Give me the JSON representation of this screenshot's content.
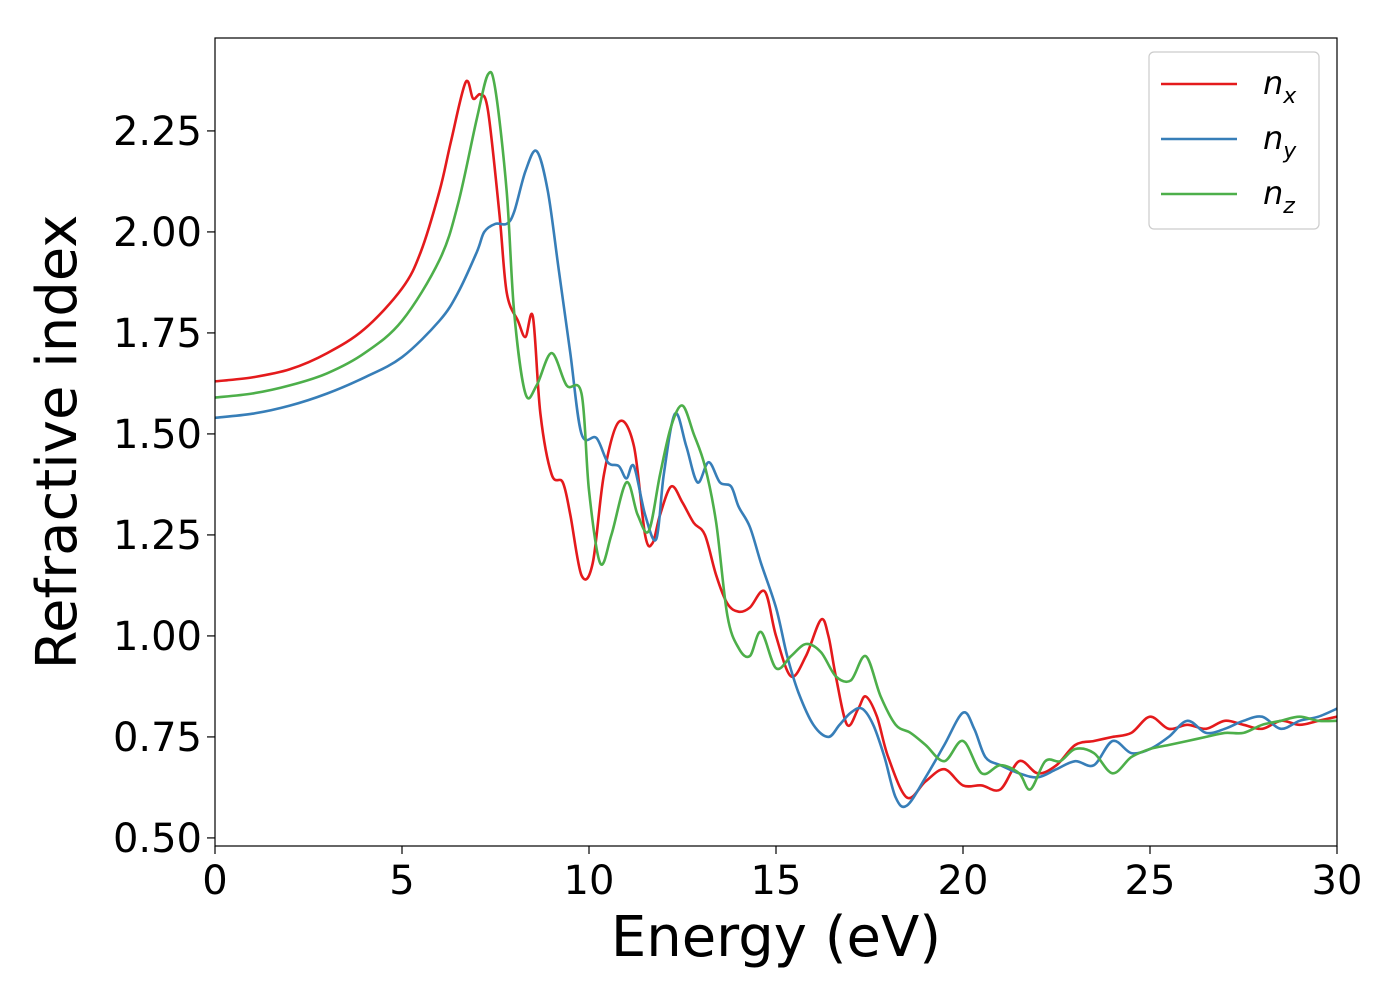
{
  "chart_data": {
    "type": "line",
    "title": "",
    "xlabel": "Energy (eV)",
    "ylabel": "Refractive index",
    "xlim": [
      0,
      30
    ],
    "ylim": [
      0.48,
      2.48
    ],
    "xticks": [
      0,
      5,
      10,
      15,
      20,
      25,
      30
    ],
    "xtick_labels": [
      "0",
      "5",
      "10",
      "15",
      "20",
      "25",
      "30"
    ],
    "yticks": [
      0.5,
      0.75,
      1.0,
      1.25,
      1.5,
      1.75,
      2.0,
      2.25
    ],
    "ytick_labels": [
      "0.50",
      "0.75",
      "1.00",
      "1.25",
      "1.50",
      "1.75",
      "2.00",
      "2.25"
    ],
    "grid": false,
    "legend_position": "top-right",
    "series": [
      {
        "name": "n_x",
        "legend_base": "n",
        "legend_sub": "x",
        "color": "#e41a1c",
        "x": [
          0,
          1,
          2,
          3,
          4,
          5,
          5.5,
          6,
          6.3,
          6.7,
          6.9,
          7.1,
          7.3,
          7.6,
          7.8,
          8.1,
          8.3,
          8.5,
          8.7,
          9.0,
          9.3,
          9.5,
          9.8,
          10.1,
          10.4,
          10.8,
          11.2,
          11.5,
          11.7,
          11.9,
          12.2,
          12.5,
          12.8,
          13.1,
          13.4,
          13.7,
          14.0,
          14.3,
          14.7,
          15.0,
          15.4,
          15.8,
          16.2,
          16.4,
          16.6,
          16.9,
          17.2,
          17.4,
          17.7,
          18.0,
          18.5,
          19.0,
          19.5,
          20.0,
          20.5,
          21.0,
          21.5,
          22.0,
          22.5,
          23.0,
          23.5,
          24.0,
          24.5,
          25.0,
          25.5,
          26.0,
          26.5,
          27.0,
          27.5,
          28.0,
          28.5,
          29.0,
          29.5,
          30.0
        ],
        "y": [
          1.63,
          1.64,
          1.66,
          1.7,
          1.76,
          1.86,
          1.95,
          2.1,
          2.22,
          2.37,
          2.33,
          2.34,
          2.3,
          2.05,
          1.85,
          1.78,
          1.74,
          1.79,
          1.55,
          1.4,
          1.38,
          1.3,
          1.15,
          1.18,
          1.4,
          1.53,
          1.47,
          1.25,
          1.23,
          1.3,
          1.37,
          1.33,
          1.28,
          1.25,
          1.15,
          1.08,
          1.06,
          1.07,
          1.11,
          1.0,
          0.9,
          0.95,
          1.04,
          1.0,
          0.9,
          0.78,
          0.82,
          0.85,
          0.8,
          0.7,
          0.6,
          0.64,
          0.67,
          0.63,
          0.63,
          0.62,
          0.69,
          0.66,
          0.68,
          0.73,
          0.74,
          0.75,
          0.76,
          0.8,
          0.77,
          0.78,
          0.77,
          0.79,
          0.78,
          0.77,
          0.79,
          0.78,
          0.79,
          0.8
        ]
      },
      {
        "name": "n_y",
        "legend_base": "n",
        "legend_sub": "y",
        "color": "#377eb8",
        "x": [
          0,
          1,
          2,
          3,
          4,
          5,
          6,
          6.5,
          7.0,
          7.2,
          7.5,
          7.8,
          8.0,
          8.3,
          8.6,
          8.9,
          9.2,
          9.5,
          9.8,
          10.2,
          10.5,
          10.8,
          11.0,
          11.2,
          11.5,
          11.8,
          12.0,
          12.3,
          12.6,
          12.9,
          13.2,
          13.5,
          13.8,
          14.0,
          14.3,
          14.6,
          15.0,
          15.3,
          15.6,
          16.0,
          16.4,
          16.7,
          17.0,
          17.3,
          17.6,
          17.9,
          18.2,
          18.5,
          19.0,
          19.5,
          20.0,
          20.3,
          20.6,
          21.0,
          21.5,
          22.0,
          22.5,
          23.0,
          23.5,
          24.0,
          24.5,
          25.0,
          25.5,
          26.0,
          26.5,
          27.0,
          27.5,
          28.0,
          28.5,
          29.0,
          29.5,
          30.0
        ],
        "y": [
          1.54,
          1.55,
          1.57,
          1.6,
          1.64,
          1.69,
          1.78,
          1.85,
          1.95,
          2.0,
          2.02,
          2.02,
          2.05,
          2.15,
          2.2,
          2.1,
          1.9,
          1.7,
          1.5,
          1.49,
          1.43,
          1.42,
          1.39,
          1.42,
          1.3,
          1.24,
          1.4,
          1.55,
          1.47,
          1.38,
          1.43,
          1.38,
          1.37,
          1.32,
          1.27,
          1.18,
          1.07,
          0.95,
          0.86,
          0.78,
          0.75,
          0.78,
          0.81,
          0.82,
          0.78,
          0.7,
          0.6,
          0.58,
          0.65,
          0.73,
          0.81,
          0.77,
          0.7,
          0.68,
          0.66,
          0.65,
          0.67,
          0.69,
          0.68,
          0.74,
          0.71,
          0.72,
          0.75,
          0.79,
          0.76,
          0.77,
          0.79,
          0.8,
          0.77,
          0.79,
          0.8,
          0.82
        ]
      },
      {
        "name": "n_z",
        "legend_base": "n",
        "legend_sub": "z",
        "color": "#4daf4a",
        "x": [
          0,
          1,
          2,
          3,
          4,
          5,
          6,
          6.5,
          7.0,
          7.3,
          7.5,
          7.8,
          8.0,
          8.3,
          8.6,
          9.0,
          9.4,
          9.8,
          10.0,
          10.3,
          10.6,
          11.0,
          11.3,
          11.6,
          11.9,
          12.2,
          12.5,
          12.8,
          13.1,
          13.4,
          13.7,
          14.0,
          14.3,
          14.6,
          15.0,
          15.4,
          15.8,
          16.2,
          16.6,
          17.0,
          17.4,
          17.8,
          18.2,
          18.6,
          19.0,
          19.5,
          20.0,
          20.5,
          21.0,
          21.5,
          21.8,
          22.2,
          22.6,
          23.0,
          23.5,
          24.0,
          24.5,
          25.0,
          25.5,
          26.0,
          26.5,
          27.0,
          27.5,
          28.0,
          28.5,
          29.0,
          29.5,
          30.0
        ],
        "y": [
          1.59,
          1.6,
          1.62,
          1.65,
          1.7,
          1.78,
          1.93,
          2.07,
          2.28,
          2.39,
          2.35,
          2.1,
          1.8,
          1.6,
          1.62,
          1.7,
          1.62,
          1.6,
          1.36,
          1.18,
          1.25,
          1.38,
          1.3,
          1.26,
          1.4,
          1.52,
          1.57,
          1.5,
          1.42,
          1.28,
          1.05,
          0.97,
          0.95,
          1.01,
          0.92,
          0.95,
          0.98,
          0.96,
          0.9,
          0.89,
          0.95,
          0.85,
          0.78,
          0.76,
          0.73,
          0.69,
          0.74,
          0.66,
          0.68,
          0.66,
          0.62,
          0.69,
          0.69,
          0.72,
          0.71,
          0.66,
          0.7,
          0.72,
          0.73,
          0.74,
          0.75,
          0.76,
          0.76,
          0.78,
          0.79,
          0.8,
          0.79,
          0.79
        ]
      }
    ]
  }
}
